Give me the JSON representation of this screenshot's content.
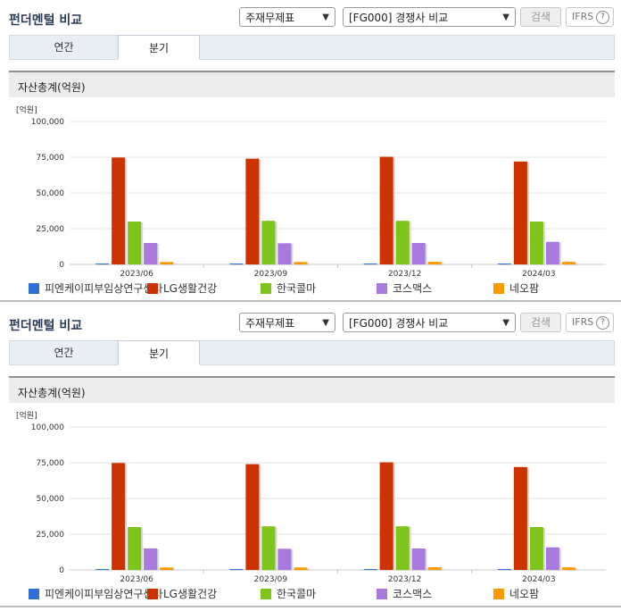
{
  "panels": [
    {
      "title": "펀더멘털 비교",
      "select_theme": "주재무제표",
      "select_compare": "[FG000] 경쟁사 비교",
      "search_button": "검색",
      "ifrs_button": "IFRS",
      "help_glyph": "?",
      "tabs": [
        "연간",
        "분기"
      ],
      "active_tab": "분기",
      "section_title": "자산총계(억원)"
    },
    {
      "title": "펀더멘털 비교",
      "select_theme": "주재무제표",
      "select_compare": "[FG000] 경쟁사 비교",
      "search_button": "검색",
      "ifrs_button": "IFRS",
      "help_glyph": "?",
      "tabs": [
        "연간",
        "분기"
      ],
      "active_tab": "분기",
      "section_title": "자산총계(억원)"
    }
  ],
  "chart_data": [
    {
      "type": "bar",
      "unit_label": "[억원]",
      "categories": [
        "2023/06",
        "2023/09",
        "2023/12",
        "2024/03"
      ],
      "ylim": [
        0,
        100000
      ],
      "yticks": [
        "100,000",
        "75,000",
        "50,000",
        "25,000",
        "0"
      ],
      "ytick_values": [
        100000,
        75000,
        50000,
        25000,
        0
      ],
      "grid": true,
      "legend_position": "bottom",
      "series": [
        {
          "name": "피엔케이피부임상연구센타",
          "color": "#2f6fd6",
          "values": [
            600,
            600,
            600,
            600
          ]
        },
        {
          "name": "LG생활건강",
          "color": "#cc3300",
          "values": [
            74800,
            74000,
            75300,
            72000
          ]
        },
        {
          "name": "한국콜마",
          "color": "#7fc41b",
          "values": [
            30000,
            30500,
            30500,
            30000
          ]
        },
        {
          "name": "코스맥스",
          "color": "#a87ae0",
          "values": [
            15000,
            14800,
            15000,
            15800
          ]
        },
        {
          "name": "네오팜",
          "color": "#ff9900",
          "values": [
            1700,
            1700,
            1800,
            1800
          ]
        }
      ]
    },
    {
      "type": "bar",
      "unit_label": "[억원]",
      "categories": [
        "2023/06",
        "2023/09",
        "2023/12",
        "2024/03"
      ],
      "ylim": [
        0,
        100000
      ],
      "yticks": [
        "100,000",
        "75,000",
        "50,000",
        "25,000",
        "0"
      ],
      "ytick_values": [
        100000,
        75000,
        50000,
        25000,
        0
      ],
      "grid": true,
      "legend_position": "bottom",
      "series": [
        {
          "name": "피엔케이피부임상연구센타",
          "color": "#2f6fd6",
          "values": [
            600,
            600,
            600,
            600
          ]
        },
        {
          "name": "LG생활건강",
          "color": "#cc3300",
          "values": [
            74800,
            74000,
            75300,
            72000
          ]
        },
        {
          "name": "한국콜마",
          "color": "#7fc41b",
          "values": [
            30000,
            30500,
            30500,
            30000
          ]
        },
        {
          "name": "코스맥스",
          "color": "#a87ae0",
          "values": [
            15000,
            14800,
            15000,
            15800
          ]
        },
        {
          "name": "네오팜",
          "color": "#ff9900",
          "values": [
            1700,
            1700,
            1800,
            1800
          ]
        }
      ]
    }
  ]
}
